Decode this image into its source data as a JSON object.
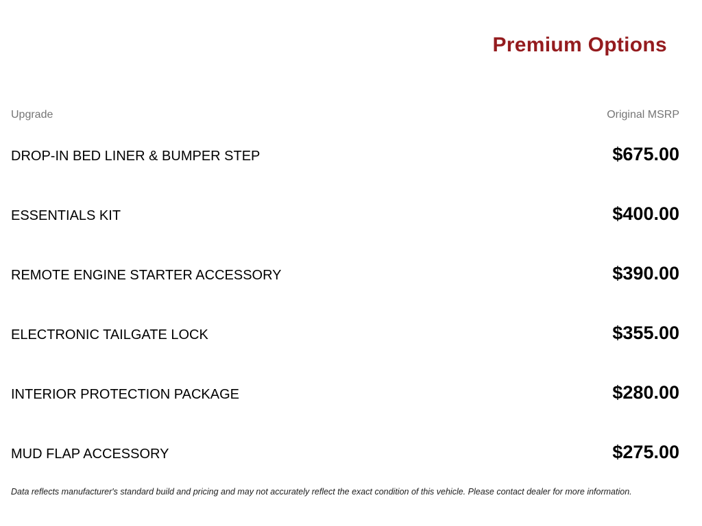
{
  "page": {
    "title": "Premium Options",
    "title_color": "#941b1e"
  },
  "table": {
    "headers": {
      "upgrade": "Upgrade",
      "msrp": "Original MSRP"
    },
    "rows": [
      {
        "name": "DROP-IN BED LINER & BUMPER STEP",
        "price": "$675.00"
      },
      {
        "name": "ESSENTIALS KIT",
        "price": "$400.00"
      },
      {
        "name": "REMOTE ENGINE STARTER ACCESSORY",
        "price": "$390.00"
      },
      {
        "name": "ELECTRONIC TAILGATE LOCK",
        "price": "$355.00"
      },
      {
        "name": "INTERIOR PROTECTION PACKAGE",
        "price": "$280.00"
      },
      {
        "name": "MUD FLAP ACCESSORY",
        "price": "$275.00"
      }
    ]
  },
  "footer": {
    "disclaimer": "Data reflects manufacturer's standard build and pricing and may not accurately reflect the exact condition of this vehicle. Please contact dealer for more information."
  }
}
